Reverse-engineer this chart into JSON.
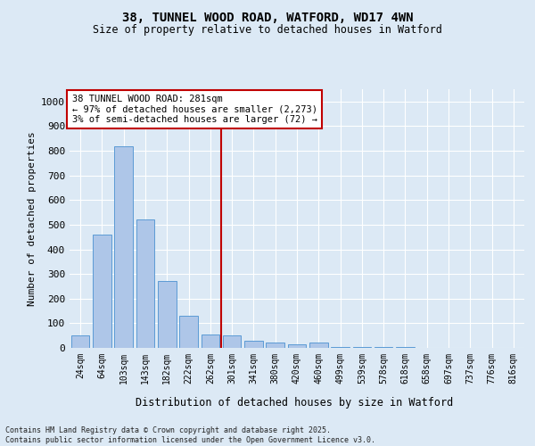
{
  "title1": "38, TUNNEL WOOD ROAD, WATFORD, WD17 4WN",
  "title2": "Size of property relative to detached houses in Watford",
  "xlabel": "Distribution of detached houses by size in Watford",
  "ylabel": "Number of detached properties",
  "bin_labels": [
    "24sqm",
    "64sqm",
    "103sqm",
    "143sqm",
    "182sqm",
    "222sqm",
    "262sqm",
    "301sqm",
    "341sqm",
    "380sqm",
    "420sqm",
    "460sqm",
    "499sqm",
    "539sqm",
    "578sqm",
    "618sqm",
    "658sqm",
    "697sqm",
    "737sqm",
    "776sqm",
    "816sqm"
  ],
  "bar_values": [
    50,
    460,
    820,
    520,
    270,
    130,
    55,
    50,
    30,
    20,
    15,
    20,
    5,
    5,
    5,
    2,
    0,
    0,
    0,
    0,
    0
  ],
  "bar_color": "#aec6e8",
  "bar_edge_color": "#5b9bd5",
  "vline_color": "#c00000",
  "annotation_line1": "38 TUNNEL WOOD ROAD: 281sqm",
  "annotation_line2": "← 97% of detached houses are smaller (2,273)",
  "annotation_line3": "3% of semi-detached houses are larger (72) →",
  "annotation_box_color": "#ffffff",
  "annotation_box_edge": "#c00000",
  "ylim": [
    0,
    1050
  ],
  "yticks": [
    0,
    100,
    200,
    300,
    400,
    500,
    600,
    700,
    800,
    900,
    1000
  ],
  "bg_color": "#dce9f5",
  "grid_color": "#ffffff",
  "footer": "Contains HM Land Registry data © Crown copyright and database right 2025.\nContains public sector information licensed under the Open Government Licence v3.0."
}
